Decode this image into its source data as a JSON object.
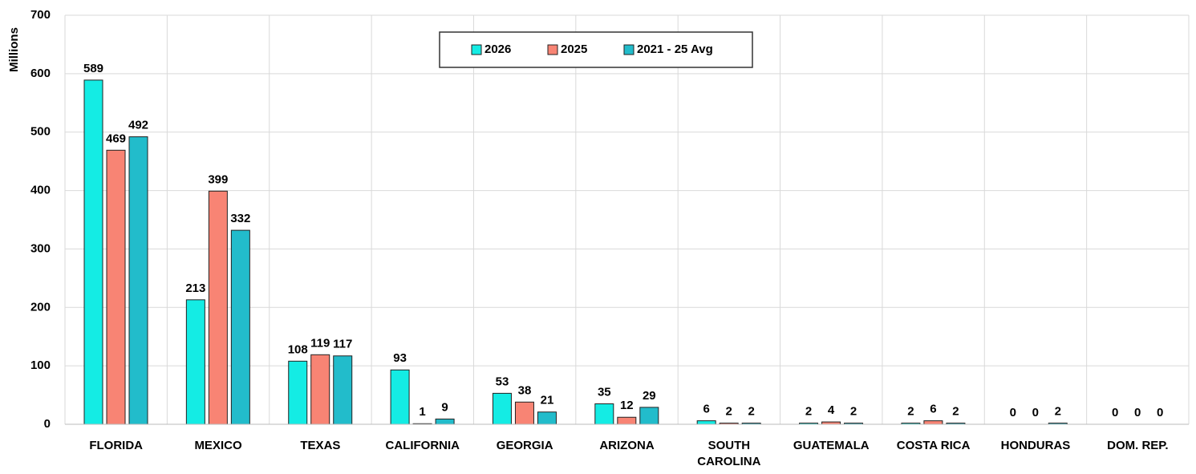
{
  "chart_data": {
    "type": "bar",
    "y_label": "Millions",
    "categories": [
      "FLORIDA",
      "MEXICO",
      "TEXAS",
      "CALIFORNIA",
      "GEORGIA",
      "ARIZONA",
      "SOUTH\nCAROLINA",
      "GUATEMALA",
      "COSTA RICA",
      "HONDURAS",
      "DOM. REP."
    ],
    "series": [
      {
        "name": "2026",
        "color": "#14ece4",
        "values": [
          589,
          213,
          108,
          93,
          53,
          35,
          6,
          2,
          2,
          0,
          0
        ]
      },
      {
        "name": "2025",
        "color": "#f88474",
        "values": [
          469,
          399,
          119,
          1,
          38,
          12,
          2,
          4,
          6,
          0,
          0
        ]
      },
      {
        "name": "2021 - 25 Avg",
        "color": "#22bccb",
        "values": [
          492,
          332,
          117,
          9,
          21,
          29,
          2,
          2,
          2,
          2,
          0
        ]
      }
    ],
    "ylim": [
      0,
      700
    ],
    "yticks": [
      0,
      100,
      200,
      300,
      400,
      500,
      600,
      700
    ],
    "grid": true
  }
}
